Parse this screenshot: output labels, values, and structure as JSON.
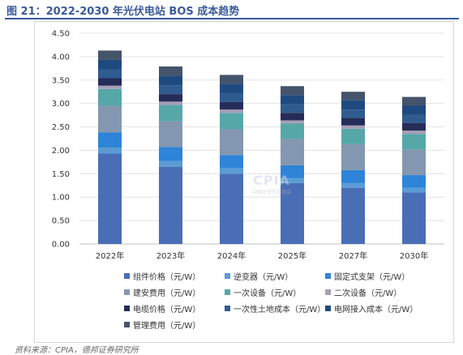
{
  "figure_title": "图 21：2022-2030 年光伏电站 BOS 成本趋势",
  "source_text": "资料来源：CPIA，德邦证券研究所",
  "watermark": {
    "mark": "CPIA",
    "subtitle": "中国光伏行业协会"
  },
  "chart_data": {
    "type": "bar",
    "stacked": true,
    "categories": [
      "2022年",
      "2023年",
      "2024年",
      "2025年",
      "2027年",
      "2030年"
    ],
    "ylim": [
      0,
      4.5
    ],
    "yticks": [
      "0.00",
      "0.50",
      "1.00",
      "1.50",
      "2.00",
      "2.50",
      "3.00",
      "3.50",
      "4.00",
      "4.50"
    ],
    "grid": true,
    "legend_position": "bottom",
    "series": [
      {
        "name": "组件价格（元/W）",
        "color": "#4a6eb5",
        "values": [
          1.93,
          1.65,
          1.5,
          1.3,
          1.2,
          1.1
        ]
      },
      {
        "name": "逆变器（元/W）",
        "color": "#5a9bd5",
        "values": [
          0.13,
          0.12,
          0.12,
          0.11,
          0.1,
          0.1
        ]
      },
      {
        "name": "固定式支架（元/W）",
        "color": "#2e84d8",
        "values": [
          0.32,
          0.3,
          0.28,
          0.27,
          0.28,
          0.27
        ]
      },
      {
        "name": "建安费用（元/W）",
        "color": "#8497b0",
        "values": [
          0.57,
          0.55,
          0.55,
          0.56,
          0.55,
          0.55
        ]
      },
      {
        "name": "一次设备（元/W）",
        "color": "#56a7a8",
        "values": [
          0.36,
          0.35,
          0.35,
          0.33,
          0.33,
          0.33
        ]
      },
      {
        "name": "二次设备（元/W）",
        "color": "#a79fb8",
        "values": [
          0.07,
          0.07,
          0.07,
          0.07,
          0.07,
          0.07
        ]
      },
      {
        "name": "电缆价格（元/W）",
        "color": "#252c58",
        "values": [
          0.16,
          0.16,
          0.16,
          0.16,
          0.16,
          0.16
        ]
      },
      {
        "name": "一次性土地成本（元/W）",
        "color": "#2f5b8f",
        "values": [
          0.19,
          0.19,
          0.19,
          0.18,
          0.18,
          0.18
        ]
      },
      {
        "name": "电网接入成本（元/W）",
        "color": "#1f4a80",
        "values": [
          0.2,
          0.2,
          0.2,
          0.2,
          0.2,
          0.2
        ]
      },
      {
        "name": "管理费用（元/W）",
        "color": "#44546a",
        "values": [
          0.2,
          0.2,
          0.19,
          0.19,
          0.18,
          0.18
        ]
      }
    ]
  }
}
